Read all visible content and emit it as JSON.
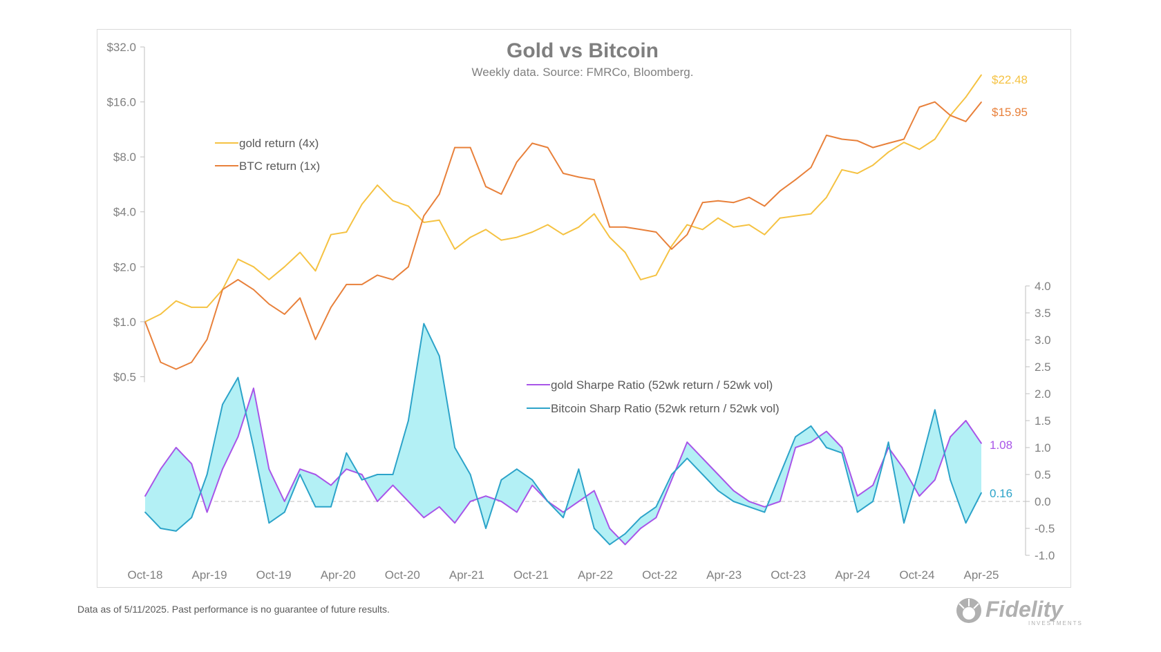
{
  "chart_data": {
    "type": "line",
    "title": "Gold vs Bitcoin",
    "subtitle": "Weekly data.  Source: FMRCo, Bloomberg.",
    "x_ticks": [
      "Oct-18",
      "Apr-19",
      "Oct-19",
      "Apr-20",
      "Oct-20",
      "Apr-21",
      "Oct-21",
      "Apr-22",
      "Oct-22",
      "Apr-23",
      "Oct-23",
      "Apr-24",
      "Oct-24",
      "Apr-25"
    ],
    "left_axis": {
      "scale": "log2",
      "ylim": [
        0.25,
        32
      ],
      "ticks": [
        0.5,
        1,
        2,
        4,
        8,
        16,
        32
      ],
      "tick_labels": [
        "$0.5",
        "$1.0",
        "$2.0",
        "$4.0",
        "$8.0",
        "$16.0",
        "$32.0"
      ]
    },
    "right_axis": {
      "ylim": [
        -1.0,
        4.0
      ],
      "ticks": [
        -1.0,
        -0.5,
        0.0,
        0.5,
        1.0,
        1.5,
        2.0,
        2.5,
        3.0,
        3.5,
        4.0
      ],
      "tick_labels": [
        "-1.0",
        "-0.5",
        "0.0",
        "0.5",
        "1.0",
        "1.5",
        "2.0",
        "2.5",
        "3.0",
        "3.5",
        "4.0"
      ]
    },
    "zero_line": "dashed",
    "colors": {
      "gold_return": "#f5c242",
      "btc_return": "#e8803a",
      "gold_sharpe": "#a855e8",
      "btc_sharpe": "#2ca3c9",
      "fill": "#b3f0f5"
    },
    "series": [
      {
        "name": "gold return (4x)",
        "axis": "left",
        "end_label": "$22.48",
        "x": [
          "Oct-18",
          "Dec-18",
          "Jan-19",
          "Mar-19",
          "Apr-19",
          "Jun-19",
          "Jul-19",
          "Aug-19",
          "Oct-19",
          "Dec-19",
          "Jan-20",
          "Mar-20",
          "Apr-20",
          "May-20",
          "Jul-20",
          "Aug-20",
          "Sep-20",
          "Oct-20",
          "Dec-20",
          "Jan-21",
          "Mar-21",
          "Apr-21",
          "Jun-21",
          "Jul-21",
          "Sep-21",
          "Oct-21",
          "Nov-21",
          "Jan-22",
          "Feb-22",
          "Apr-22",
          "Jun-22",
          "Jul-22",
          "Sep-22",
          "Oct-22",
          "Dec-22",
          "Jan-23",
          "Mar-23",
          "Apr-23",
          "Jun-23",
          "Jul-23",
          "Sep-23",
          "Oct-23",
          "Dec-23",
          "Jan-24",
          "Mar-24",
          "Apr-24",
          "Jun-24",
          "Jul-24",
          "Sep-24",
          "Oct-24",
          "Dec-24",
          "Jan-25",
          "Mar-25",
          "Apr-25",
          "May-25"
        ],
        "values": [
          1.0,
          1.1,
          1.3,
          1.2,
          1.2,
          1.5,
          2.2,
          2.0,
          1.7,
          2.0,
          2.4,
          1.9,
          3.0,
          3.1,
          4.4,
          5.6,
          4.6,
          4.3,
          3.5,
          3.6,
          2.5,
          2.9,
          3.2,
          2.8,
          2.9,
          3.1,
          3.4,
          3.0,
          3.3,
          3.9,
          2.9,
          2.4,
          1.7,
          1.8,
          2.6,
          3.4,
          3.2,
          3.7,
          3.3,
          3.4,
          3.0,
          3.7,
          3.8,
          3.9,
          4.8,
          6.8,
          6.5,
          7.2,
          8.5,
          9.6,
          8.8,
          10.0,
          13.5,
          17.0,
          22.48
        ]
      },
      {
        "name": "BTC return (1x)",
        "axis": "left",
        "end_label": "$15.95",
        "x": [
          "Oct-18",
          "Dec-18",
          "Jan-19",
          "Mar-19",
          "Apr-19",
          "Jun-19",
          "Jul-19",
          "Aug-19",
          "Oct-19",
          "Dec-19",
          "Jan-20",
          "Mar-20",
          "Apr-20",
          "May-20",
          "Jul-20",
          "Aug-20",
          "Sep-20",
          "Oct-20",
          "Dec-20",
          "Jan-21",
          "Mar-21",
          "Apr-21",
          "Jun-21",
          "Jul-21",
          "Sep-21",
          "Oct-21",
          "Nov-21",
          "Jan-22",
          "Feb-22",
          "Apr-22",
          "Jun-22",
          "Jul-22",
          "Sep-22",
          "Oct-22",
          "Dec-22",
          "Jan-23",
          "Mar-23",
          "Apr-23",
          "Jun-23",
          "Jul-23",
          "Sep-23",
          "Oct-23",
          "Dec-23",
          "Jan-24",
          "Mar-24",
          "Apr-24",
          "Jun-24",
          "Jul-24",
          "Sep-24",
          "Oct-24",
          "Dec-24",
          "Jan-25",
          "Mar-25",
          "Apr-25",
          "May-25"
        ],
        "values": [
          1.0,
          0.6,
          0.55,
          0.6,
          0.8,
          1.5,
          1.7,
          1.5,
          1.25,
          1.1,
          1.35,
          0.8,
          1.2,
          1.6,
          1.6,
          1.8,
          1.7,
          2.0,
          3.8,
          5.0,
          9.0,
          9.0,
          5.5,
          5.0,
          7.5,
          9.5,
          9.0,
          6.5,
          6.2,
          6.0,
          3.3,
          3.3,
          3.2,
          3.1,
          2.5,
          3.0,
          4.5,
          4.6,
          4.5,
          4.8,
          4.3,
          5.2,
          6.0,
          7.0,
          10.5,
          10.0,
          9.8,
          9.0,
          9.5,
          10.0,
          15.0,
          16.0,
          13.5,
          12.5,
          15.95
        ]
      },
      {
        "name": "gold Sharpe Ratio (52wk return / 52wk vol)",
        "axis": "right",
        "end_label": "1.08",
        "x": [
          "Oct-18",
          "Dec-18",
          "Jan-19",
          "Mar-19",
          "Apr-19",
          "Jun-19",
          "Jul-19",
          "Aug-19",
          "Oct-19",
          "Dec-19",
          "Jan-20",
          "Mar-20",
          "Apr-20",
          "May-20",
          "Jul-20",
          "Aug-20",
          "Sep-20",
          "Oct-20",
          "Dec-20",
          "Jan-21",
          "Mar-21",
          "Apr-21",
          "Jun-21",
          "Jul-21",
          "Sep-21",
          "Oct-21",
          "Nov-21",
          "Jan-22",
          "Feb-22",
          "Apr-22",
          "Jun-22",
          "Jul-22",
          "Sep-22",
          "Oct-22",
          "Dec-22",
          "Jan-23",
          "Mar-23",
          "Apr-23",
          "Jun-23",
          "Jul-23",
          "Sep-23",
          "Oct-23",
          "Dec-23",
          "Jan-24",
          "Mar-24",
          "Apr-24",
          "Jun-24",
          "Jul-24",
          "Sep-24",
          "Oct-24",
          "Dec-24",
          "Jan-25",
          "Mar-25",
          "Apr-25",
          "May-25"
        ],
        "values": [
          0.1,
          0.6,
          1.0,
          0.7,
          -0.2,
          0.6,
          1.2,
          2.1,
          0.6,
          0.0,
          0.6,
          0.5,
          0.3,
          0.6,
          0.5,
          0.0,
          0.3,
          0.0,
          -0.3,
          -0.1,
          -0.4,
          0.0,
          0.1,
          0.0,
          -0.2,
          0.3,
          0.0,
          -0.2,
          0.0,
          0.2,
          -0.5,
          -0.8,
          -0.5,
          -0.3,
          0.4,
          1.1,
          0.8,
          0.5,
          0.2,
          0.0,
          -0.1,
          0.0,
          1.0,
          1.1,
          1.3,
          1.0,
          0.1,
          0.3,
          1.0,
          0.6,
          0.1,
          0.4,
          1.2,
          1.5,
          1.08
        ]
      },
      {
        "name": "Bitcoin Sharp Ratio (52wk return / 52wk vol)",
        "axis": "right",
        "end_label": "0.16",
        "x": [
          "Oct-18",
          "Dec-18",
          "Jan-19",
          "Mar-19",
          "Apr-19",
          "Jun-19",
          "Jul-19",
          "Aug-19",
          "Oct-19",
          "Dec-19",
          "Jan-20",
          "Mar-20",
          "Apr-20",
          "May-20",
          "Jul-20",
          "Aug-20",
          "Sep-20",
          "Oct-20",
          "Dec-20",
          "Jan-21",
          "Mar-21",
          "Apr-21",
          "Jun-21",
          "Jul-21",
          "Sep-21",
          "Oct-21",
          "Nov-21",
          "Jan-22",
          "Feb-22",
          "Apr-22",
          "Jun-22",
          "Jul-22",
          "Sep-22",
          "Oct-22",
          "Dec-22",
          "Jan-23",
          "Mar-23",
          "Apr-23",
          "Jun-23",
          "Jul-23",
          "Sep-23",
          "Oct-23",
          "Dec-23",
          "Jan-24",
          "Mar-24",
          "Apr-24",
          "Jun-24",
          "Jul-24",
          "Sep-24",
          "Oct-24",
          "Dec-24",
          "Jan-25",
          "Mar-25",
          "Apr-25",
          "May-25"
        ],
        "values": [
          -0.2,
          -0.5,
          -0.55,
          -0.3,
          0.5,
          1.8,
          2.3,
          1.0,
          -0.4,
          -0.2,
          0.5,
          -0.1,
          -0.1,
          0.9,
          0.4,
          0.5,
          0.5,
          1.5,
          3.3,
          2.7,
          1.0,
          0.5,
          -0.5,
          0.4,
          0.6,
          0.4,
          0.0,
          -0.3,
          0.6,
          -0.5,
          -0.8,
          -0.6,
          -0.3,
          -0.1,
          0.5,
          0.8,
          0.5,
          0.2,
          0.0,
          -0.1,
          -0.2,
          0.5,
          1.2,
          1.4,
          1.0,
          0.9,
          -0.2,
          0.0,
          1.1,
          -0.4,
          0.6,
          1.7,
          0.4,
          -0.4,
          0.16
        ]
      }
    ]
  },
  "footnote": "Data as of 5/11/2025. Past performance is no guarantee of future results.",
  "logo": {
    "text": "Fidelity",
    "subtext": "INVESTMENTS"
  }
}
